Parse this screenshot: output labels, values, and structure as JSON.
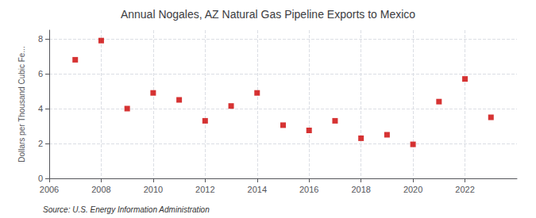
{
  "chart_data": {
    "type": "scatter",
    "title": "Annual Nogales, AZ Natural Gas Pipeline Exports to Mexico",
    "ylabel": "Dollars per Thousand Cubic Fe...",
    "source": "Source: U.S. Energy Information Administration",
    "x": [
      2007,
      2008,
      2009,
      2010,
      2011,
      2012,
      2013,
      2014,
      2015,
      2016,
      2017,
      2018,
      2019,
      2020,
      2021,
      2022,
      2023
    ],
    "values": [
      6.8,
      7.9,
      4.0,
      4.9,
      4.5,
      3.3,
      4.15,
      4.9,
      3.05,
      2.75,
      3.3,
      2.3,
      2.5,
      1.95,
      4.4,
      5.7,
      3.5
    ],
    "color": "#cc0000",
    "marker": "square",
    "xlim": [
      2006,
      2024
    ],
    "xticks": [
      2006,
      2008,
      2010,
      2012,
      2014,
      2016,
      2018,
      2020,
      2022
    ],
    "ylim": [
      0,
      8.5
    ],
    "yticks": [
      0,
      2,
      4,
      6,
      8
    ],
    "grid": true
  }
}
